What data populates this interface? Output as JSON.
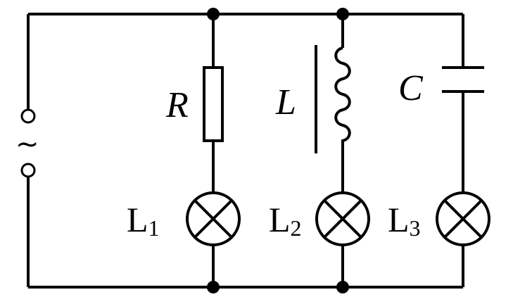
{
  "source": {
    "symbol": "~"
  },
  "resistor": {
    "label": "R"
  },
  "inductor": {
    "label": "L"
  },
  "capacitor": {
    "label": "C"
  },
  "lamps": [
    {
      "letter": "L",
      "subscript": "1"
    },
    {
      "letter": "L",
      "subscript": "2"
    },
    {
      "letter": "L",
      "subscript": "3"
    }
  ]
}
